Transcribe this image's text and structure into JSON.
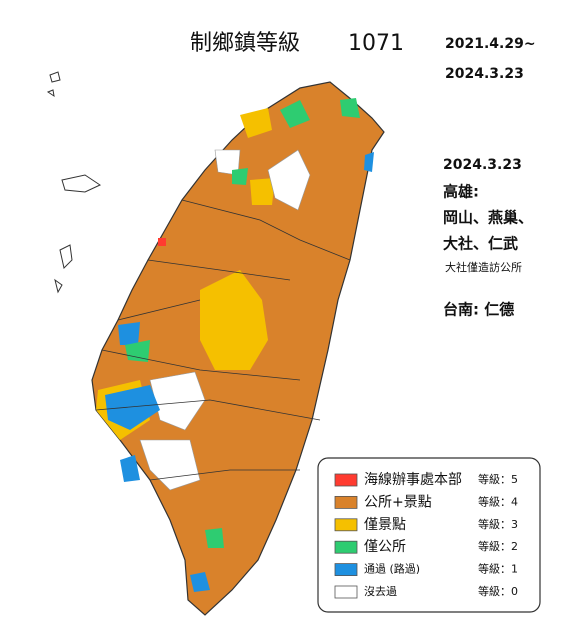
{
  "header": {
    "title": "制鄉鎮等級",
    "count": "1071",
    "date_range_start": "2021.4.29~",
    "date_range_end": "2024.3.23"
  },
  "notes": {
    "date": "2024.3.23",
    "kaohsiung_label": "高雄:",
    "kaohsiung_line1": "岡山、燕巢、",
    "kaohsiung_line2": "大社、仁武",
    "kaohsiung_sub": "大社僅造訪公所",
    "tainan": "台南: 仁德"
  },
  "legend": {
    "items": [
      {
        "label": "海線辦事處本部",
        "level": "等級：5",
        "color": "#ff3b30"
      },
      {
        "label": "公所+景點",
        "level": "等級：4",
        "color": "#d9822b"
      },
      {
        "label": "僅景點",
        "level": "等級：3",
        "color": "#f5c000"
      },
      {
        "label": "僅公所",
        "level": "等級：2",
        "color": "#2ecc71"
      },
      {
        "label": "通過 (路過)",
        "level": "等級：1",
        "color": "#1e90e0"
      },
      {
        "label": "沒去過",
        "level": "等級：0",
        "color": "#ffffff"
      }
    ]
  }
}
